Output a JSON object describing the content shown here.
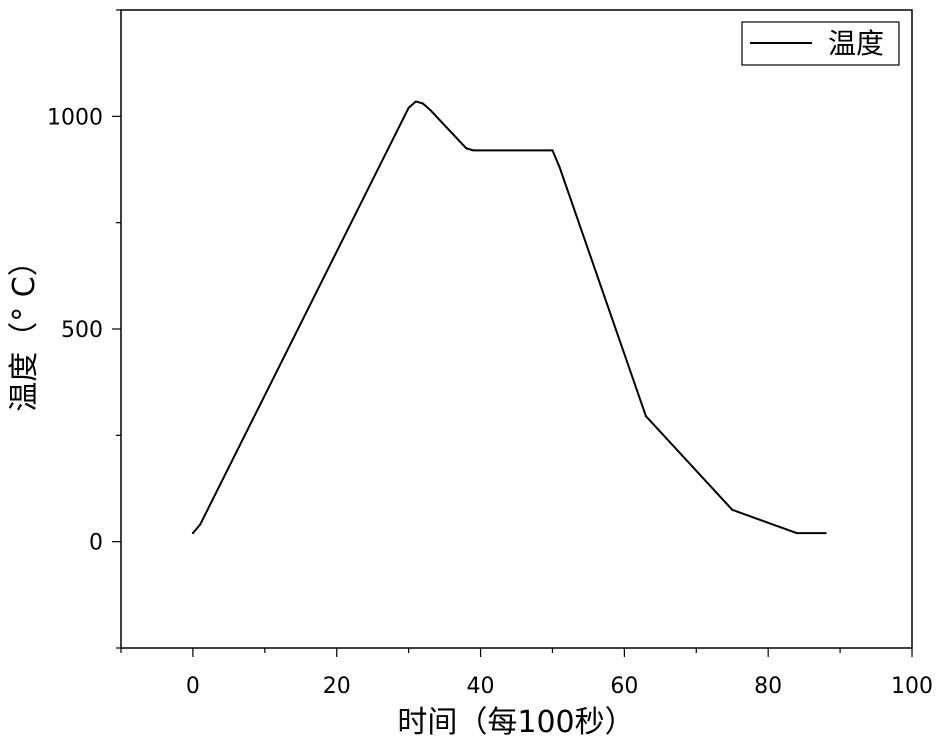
{
  "chart_data": {
    "type": "line",
    "xlabel": "时间（每100秒）",
    "ylabel": "温度（° C）",
    "xlim": [
      -10,
      100
    ],
    "ylim": [
      -250,
      1250
    ],
    "x_ticks": [
      0,
      20,
      40,
      60,
      80,
      100
    ],
    "y_ticks": [
      0,
      500,
      1000
    ],
    "grid": false,
    "legend_position": "top-right",
    "series": [
      {
        "name": "温度",
        "color": "#000000",
        "x": [
          0,
          1,
          30,
          31,
          32,
          33,
          38,
          39,
          50,
          51,
          63,
          75,
          84,
          88
        ],
        "y": [
          20,
          40,
          1020,
          1035,
          1030,
          1015,
          925,
          920,
          920,
          880,
          295,
          75,
          20,
          20
        ]
      }
    ]
  }
}
